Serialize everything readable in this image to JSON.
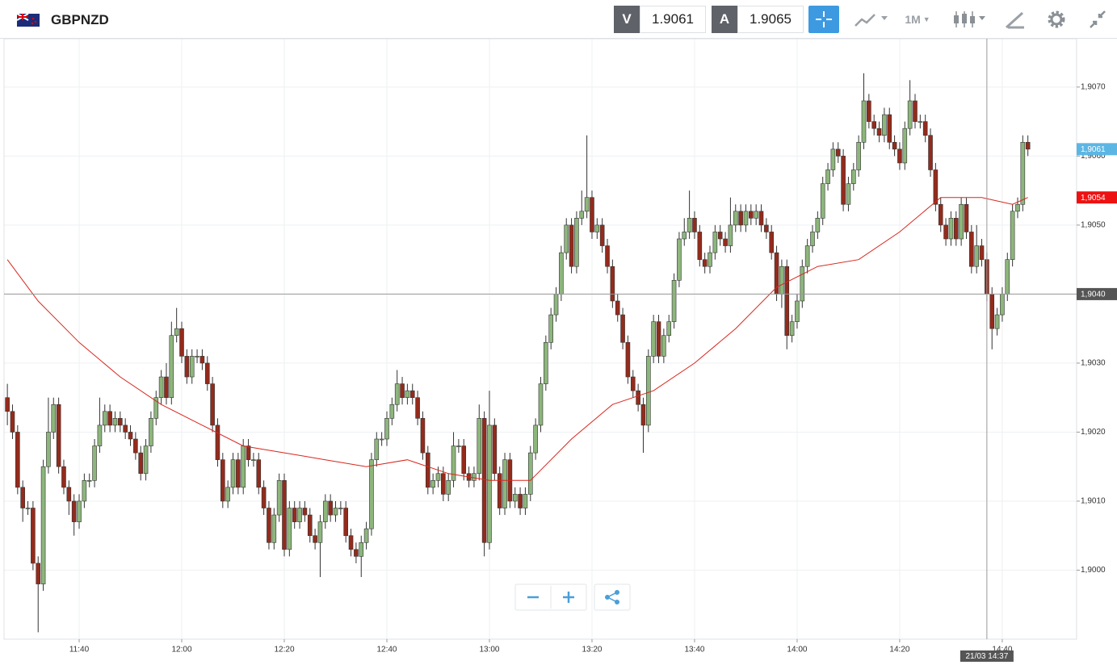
{
  "toolbar": {
    "symbol": "GBPNZD",
    "sell_label": "V",
    "sell_price": "1.9061",
    "buy_label": "A",
    "buy_price": "1.9065",
    "timeframe": "1M"
  },
  "chart_data": {
    "type": "candlestick",
    "x": [
      26,
      27,
      28,
      29,
      30,
      31,
      32,
      33,
      34,
      35,
      36,
      37,
      38,
      39,
      40,
      41,
      42,
      43,
      44,
      45,
      46,
      47,
      48,
      49,
      50,
      51,
      52,
      53,
      54,
      55,
      56,
      57,
      58,
      59,
      60,
      61,
      62,
      63,
      64,
      65,
      66,
      67,
      68,
      69,
      70,
      71,
      72,
      73,
      74,
      75,
      76,
      77,
      78,
      79,
      80,
      81,
      82,
      83,
      84,
      85,
      86,
      87,
      88,
      89,
      90,
      91,
      92,
      93,
      94,
      95,
      96,
      97,
      98,
      99,
      100,
      101,
      102,
      103,
      104,
      105,
      106,
      107,
      108,
      109,
      110,
      111,
      112,
      113,
      114,
      115,
      116,
      117,
      118,
      119,
      120,
      121,
      122,
      123,
      124,
      125,
      126,
      127,
      128,
      129,
      130,
      131,
      132,
      133,
      134,
      135,
      136,
      137,
      138,
      139,
      140,
      141,
      142,
      143,
      144,
      145,
      146,
      147,
      148,
      149,
      150,
      151,
      152,
      153,
      154,
      155,
      156,
      157,
      158,
      159,
      160,
      161,
      162,
      163,
      164,
      165,
      166,
      167,
      168,
      169,
      170,
      171,
      172,
      173,
      174,
      175,
      176,
      177,
      178,
      179,
      180,
      181,
      182,
      183,
      184,
      185,
      186,
      187,
      188,
      189,
      190,
      191,
      192,
      193,
      194,
      195,
      196,
      197,
      198,
      199,
      200,
      201,
      202,
      203,
      204,
      205,
      206,
      207,
      208,
      209,
      210,
      211,
      212,
      213,
      214,
      215,
      216,
      217,
      218,
      219,
      220,
      221,
      222,
      223,
      224,
      225
    ],
    "open": [
      1.9025,
      1.9023,
      1.902,
      1.9012,
      1.9009,
      1.9009,
      1.9001,
      1.8998,
      1.9015,
      1.902,
      1.9024,
      1.9015,
      1.9012,
      1.901,
      1.9007,
      1.901,
      1.9013,
      1.9013,
      1.9018,
      1.9021,
      1.9023,
      1.9021,
      1.9022,
      1.9021,
      1.902,
      1.9019,
      1.9017,
      1.9014,
      1.9018,
      1.9022,
      1.9025,
      1.9028,
      1.9025,
      1.9034,
      1.9035,
      1.9031,
      1.9028,
      1.9031,
      1.9031,
      1.903,
      1.9027,
      1.9021,
      1.9016,
      1.901,
      1.9012,
      1.9016,
      1.9012,
      1.9018,
      1.9016,
      1.9016,
      1.9012,
      1.9009,
      1.9004,
      1.9008,
      1.9013,
      1.9003,
      1.9009,
      1.9007,
      1.9009,
      1.9008,
      1.9005,
      1.9004,
      1.9007,
      1.901,
      1.9008,
      1.9009,
      1.9009,
      1.9005,
      1.9003,
      1.9002,
      1.9004,
      1.9006,
      1.9016,
      1.9019,
      1.9019,
      1.9022,
      1.9024,
      1.9027,
      1.9025,
      1.9026,
      1.9025,
      1.9022,
      1.9017,
      1.9012,
      1.9013,
      1.9014,
      1.9011,
      1.9013,
      1.9018,
      1.9018,
      1.9014,
      1.9013,
      1.9014,
      1.9022,
      1.9004,
      1.9021,
      1.9014,
      1.9009,
      1.9016,
      1.901,
      1.9011,
      1.9009,
      1.9011,
      1.9017,
      1.9021,
      1.9027,
      1.9033,
      1.9037,
      1.904,
      1.9046,
      1.905,
      1.9044,
      1.9051,
      1.9052,
      1.9054,
      1.9049,
      1.905,
      1.9047,
      1.9044,
      1.9039,
      1.9037,
      1.9033,
      1.9028,
      1.9026,
      1.9024,
      1.9021,
      1.9031,
      1.9036,
      1.9031,
      1.9034,
      1.9036,
      1.9042,
      1.9048,
      1.9049,
      1.9051,
      1.9049,
      1.9045,
      1.9044,
      1.9046,
      1.9049,
      1.9048,
      1.9047,
      1.905,
      1.9052,
      1.905,
      1.9052,
      1.9051,
      1.9052,
      1.905,
      1.9049,
      1.9046,
      1.904,
      1.9044,
      1.9034,
      1.9036,
      1.9039,
      1.9044,
      1.9047,
      1.9049,
      1.9051,
      1.9056,
      1.9058,
      1.9061,
      1.906,
      1.9053,
      1.9056,
      1.9058,
      1.9062,
      1.9068,
      1.9065,
      1.9064,
      1.9063,
      1.9066,
      1.9062,
      1.9061,
      1.9059,
      1.9064,
      1.9068,
      1.9065,
      1.9065,
      1.9063,
      1.9058,
      1.9053,
      1.905,
      1.9048,
      1.9051,
      1.9048,
      1.9053,
      1.9049,
      1.9044,
      1.9047,
      1.9045,
      1.904,
      1.9035,
      1.9037,
      1.904,
      1.9045,
      1.9052,
      1.9053,
      1.9062
    ],
    "high": [
      1.9027,
      1.9024,
      1.9021,
      1.9013,
      1.901,
      1.901,
      1.9002,
      1.9016,
      1.9025,
      1.9025,
      1.9025,
      1.9016,
      1.9013,
      1.9011,
      1.9011,
      1.9014,
      1.9014,
      1.9019,
      1.9025,
      1.9024,
      1.9024,
      1.9023,
      1.9023,
      1.9022,
      1.9021,
      1.902,
      1.9018,
      1.9019,
      1.9023,
      1.9026,
      1.9029,
      1.903,
      1.9036,
      1.9038,
      1.9036,
      1.9032,
      1.9032,
      1.9032,
      1.9032,
      1.9031,
      1.9028,
      1.9022,
      1.9017,
      1.9013,
      1.9017,
      1.9017,
      1.9019,
      1.9019,
      1.9017,
      1.9017,
      1.9013,
      1.901,
      1.9009,
      1.9014,
      1.9014,
      1.901,
      1.901,
      1.901,
      1.901,
      1.9009,
      1.9006,
      1.9008,
      1.9011,
      1.9011,
      1.901,
      1.901,
      1.901,
      1.9006,
      1.9004,
      1.9005,
      1.9007,
      1.9017,
      1.902,
      1.902,
      1.9023,
      1.9025,
      1.9029,
      1.9028,
      1.9027,
      1.9027,
      1.9026,
      1.9023,
      1.9018,
      1.9014,
      1.9015,
      1.9015,
      1.9014,
      1.902,
      1.9019,
      1.9019,
      1.9015,
      1.9015,
      1.9024,
      1.9023,
      1.9026,
      1.9022,
      1.9015,
      1.9017,
      1.9017,
      1.9012,
      1.9012,
      1.9012,
      1.9018,
      1.9022,
      1.9028,
      1.9034,
      1.9038,
      1.9041,
      1.9047,
      1.9051,
      1.9051,
      1.9052,
      1.9055,
      1.9063,
      1.9055,
      1.9051,
      1.9051,
      1.9048,
      1.9045,
      1.904,
      1.9038,
      1.9034,
      1.9029,
      1.9027,
      1.9025,
      1.9032,
      1.9037,
      1.9037,
      1.9035,
      1.9037,
      1.9043,
      1.9049,
      1.9051,
      1.9055,
      1.9052,
      1.905,
      1.9046,
      1.9047,
      1.905,
      1.905,
      1.9049,
      1.9054,
      1.9053,
      1.9053,
      1.9053,
      1.9053,
      1.9053,
      1.9053,
      1.9051,
      1.905,
      1.9047,
      1.9045,
      1.9045,
      1.9037,
      1.904,
      1.9045,
      1.9048,
      1.905,
      1.9052,
      1.9057,
      1.9059,
      1.9062,
      1.9062,
      1.9061,
      1.9057,
      1.9059,
      1.9063,
      1.9072,
      1.9069,
      1.9066,
      1.9065,
      1.9067,
      1.9067,
      1.9063,
      1.9062,
      1.9065,
      1.9071,
      1.9069,
      1.9066,
      1.9066,
      1.9064,
      1.9059,
      1.9054,
      1.9051,
      1.9052,
      1.9052,
      1.9054,
      1.9054,
      1.905,
      1.905,
      1.9048,
      1.9046,
      1.9041,
      1.9038,
      1.9041,
      1.9046,
      1.9053,
      1.9054,
      1.9063,
      1.9063
    ],
    "low": [
      1.9021,
      1.9019,
      1.9011,
      1.9007,
      1.9008,
      1.9,
      1.8991,
      1.8997,
      1.9014,
      1.9019,
      1.9014,
      1.9011,
      1.9008,
      1.9005,
      1.9006,
      1.9009,
      1.9012,
      1.9012,
      1.9017,
      1.902,
      1.902,
      1.902,
      1.902,
      1.9019,
      1.9018,
      1.9016,
      1.9013,
      1.9013,
      1.9017,
      1.9021,
      1.9024,
      1.9024,
      1.9024,
      1.9033,
      1.903,
      1.9027,
      1.9027,
      1.903,
      1.9029,
      1.9026,
      1.902,
      1.9015,
      1.9009,
      1.9009,
      1.9011,
      1.9011,
      1.9011,
      1.9015,
      1.9015,
      1.9011,
      1.9008,
      1.9003,
      1.9003,
      1.9007,
      1.9002,
      1.9002,
      1.9006,
      1.9006,
      1.9007,
      1.9004,
      1.9003,
      1.8999,
      1.9006,
      1.9007,
      1.9007,
      1.9008,
      1.9004,
      1.9002,
      1.9001,
      1.8999,
      1.9003,
      1.9005,
      1.9015,
      1.9018,
      1.9018,
      1.9021,
      1.9023,
      1.9024,
      1.9024,
      1.9024,
      1.9021,
      1.9016,
      1.9011,
      1.9011,
      1.9012,
      1.901,
      1.901,
      1.9012,
      1.9017,
      1.9013,
      1.9012,
      1.9012,
      1.9013,
      1.9002,
      1.9003,
      1.9013,
      1.9008,
      1.9008,
      1.9009,
      1.9009,
      1.9008,
      1.9008,
      1.901,
      1.9016,
      1.902,
      1.9026,
      1.9032,
      1.9036,
      1.9039,
      1.9045,
      1.9043,
      1.9043,
      1.905,
      1.9051,
      1.9048,
      1.9048,
      1.9046,
      1.9043,
      1.9038,
      1.9036,
      1.9032,
      1.9027,
      1.9025,
      1.9023,
      1.9017,
      1.902,
      1.903,
      1.903,
      1.903,
      1.9033,
      1.9035,
      1.9041,
      1.9047,
      1.9048,
      1.9048,
      1.9044,
      1.9043,
      1.9043,
      1.9045,
      1.9047,
      1.9046,
      1.9046,
      1.9049,
      1.9049,
      1.9049,
      1.905,
      1.905,
      1.9049,
      1.9048,
      1.9045,
      1.9039,
      1.9038,
      1.9032,
      1.9033,
      1.9035,
      1.9038,
      1.9043,
      1.9046,
      1.9048,
      1.905,
      1.9055,
      1.9057,
      1.9059,
      1.9052,
      1.9052,
      1.9055,
      1.9057,
      1.9061,
      1.9064,
      1.9063,
      1.9062,
      1.9062,
      1.9061,
      1.906,
      1.9058,
      1.9058,
      1.9063,
      1.9064,
      1.9064,
      1.9062,
      1.9057,
      1.9052,
      1.9049,
      1.9047,
      1.9047,
      1.9047,
      1.9047,
      1.9048,
      1.9043,
      1.9043,
      1.9044,
      1.9039,
      1.9032,
      1.9034,
      1.9036,
      1.9039,
      1.9044,
      1.9051,
      1.9052,
      1.906
    ],
    "close": [
      1.9023,
      1.902,
      1.9012,
      1.9009,
      1.9009,
      1.9001,
      1.8998,
      1.9015,
      1.902,
      1.9024,
      1.9015,
      1.9012,
      1.901,
      1.9007,
      1.901,
      1.9013,
      1.9013,
      1.9018,
      1.9021,
      1.9023,
      1.9021,
      1.9022,
      1.9021,
      1.902,
      1.9019,
      1.9017,
      1.9014,
      1.9018,
      1.9022,
      1.9025,
      1.9028,
      1.9025,
      1.9034,
      1.9035,
      1.9031,
      1.9028,
      1.9031,
      1.9031,
      1.903,
      1.9027,
      1.9021,
      1.9016,
      1.901,
      1.9012,
      1.9016,
      1.9012,
      1.9018,
      1.9016,
      1.9016,
      1.9012,
      1.9009,
      1.9004,
      1.9008,
      1.9013,
      1.9003,
      1.9009,
      1.9007,
      1.9009,
      1.9008,
      1.9005,
      1.9004,
      1.9007,
      1.901,
      1.9008,
      1.9009,
      1.9009,
      1.9005,
      1.9003,
      1.9002,
      1.9004,
      1.9006,
      1.9016,
      1.9019,
      1.9019,
      1.9022,
      1.9024,
      1.9027,
      1.9025,
      1.9026,
      1.9025,
      1.9022,
      1.9017,
      1.9012,
      1.9013,
      1.9014,
      1.9011,
      1.9013,
      1.9018,
      1.9018,
      1.9014,
      1.9013,
      1.9014,
      1.9022,
      1.9004,
      1.9021,
      1.9014,
      1.9009,
      1.9016,
      1.901,
      1.9011,
      1.9009,
      1.9011,
      1.9017,
      1.9021,
      1.9027,
      1.9033,
      1.9037,
      1.904,
      1.9046,
      1.905,
      1.9044,
      1.9051,
      1.9052,
      1.9054,
      1.9049,
      1.905,
      1.9047,
      1.9044,
      1.9039,
      1.9037,
      1.9033,
      1.9028,
      1.9026,
      1.9024,
      1.9021,
      1.9031,
      1.9036,
      1.9031,
      1.9034,
      1.9036,
      1.9042,
      1.9048,
      1.9049,
      1.9051,
      1.9049,
      1.9045,
      1.9044,
      1.9046,
      1.9049,
      1.9048,
      1.9047,
      1.905,
      1.9052,
      1.905,
      1.9052,
      1.9051,
      1.9052,
      1.905,
      1.9049,
      1.9046,
      1.904,
      1.9044,
      1.9034,
      1.9036,
      1.9039,
      1.9044,
      1.9047,
      1.9049,
      1.9051,
      1.9056,
      1.9058,
      1.9061,
      1.906,
      1.9053,
      1.9056,
      1.9058,
      1.9062,
      1.9068,
      1.9065,
      1.9064,
      1.9063,
      1.9066,
      1.9062,
      1.9061,
      1.9059,
      1.9064,
      1.9068,
      1.9065,
      1.9065,
      1.9063,
      1.9058,
      1.9053,
      1.905,
      1.9048,
      1.9051,
      1.9048,
      1.9053,
      1.9049,
      1.9044,
      1.9047,
      1.9045,
      1.904,
      1.9035,
      1.9037,
      1.904,
      1.9045,
      1.9052,
      1.9053,
      1.9062,
      1.9061
    ],
    "up_color": "#8db67c",
    "down_color": "#932b1c",
    "overlay": {
      "color": "#d9261c",
      "x": [
        26,
        32,
        40,
        48,
        56,
        64,
        72,
        80,
        88,
        96,
        104,
        112,
        120,
        128,
        136,
        144,
        152,
        160,
        168,
        176,
        184,
        192,
        200,
        208,
        216,
        222,
        225
      ],
      "values": [
        1.9045,
        1.9039,
        1.9033,
        1.9028,
        1.9024,
        1.9021,
        1.9018,
        1.9017,
        1.9016,
        1.9015,
        1.9016,
        1.9014,
        1.9013,
        1.9013,
        1.9019,
        1.9024,
        1.9026,
        1.903,
        1.9035,
        1.9041,
        1.9044,
        1.9045,
        1.9049,
        1.9054,
        1.9054,
        1.9053,
        1.9054
      ]
    },
    "xlim": [
      25.35,
      234.5
    ],
    "xticks": [
      {
        "value": 40,
        "label": "11:40"
      },
      {
        "value": 60,
        "label": "12:00"
      },
      {
        "value": 80,
        "label": "12:20"
      },
      {
        "value": 100,
        "label": "12:40"
      },
      {
        "value": 120,
        "label": "13:00"
      },
      {
        "value": 140,
        "label": "13:20"
      },
      {
        "value": 160,
        "label": "13:40"
      },
      {
        "value": 180,
        "label": "14:00"
      },
      {
        "value": 200,
        "label": "14:20"
      },
      {
        "value": 220,
        "label": "14:40"
      }
    ],
    "ylim": [
      1.899,
      1.9077
    ],
    "yticks": [
      {
        "value": 1.9,
        "label": "1,9000"
      },
      {
        "value": 1.901,
        "label": "1,9010"
      },
      {
        "value": 1.902,
        "label": "1,9020"
      },
      {
        "value": 1.903,
        "label": "1,9030"
      },
      {
        "value": 1.904,
        "label": "1,9040"
      },
      {
        "value": 1.905,
        "label": "1,9050"
      },
      {
        "value": 1.906,
        "label": "1,9060"
      },
      {
        "value": 1.907,
        "label": "1,9070"
      }
    ],
    "grid": true,
    "price_tags": [
      {
        "value": 1.9061,
        "label": "1,9061",
        "color": "#5cb6e4"
      },
      {
        "value": 1.9054,
        "label": "1,9054",
        "color": "#ee1111"
      }
    ],
    "crosshair": {
      "x": 217,
      "y": 1.904,
      "x_label": "21/03 14:37",
      "y_label": "1,9040",
      "color": "#555555"
    }
  }
}
